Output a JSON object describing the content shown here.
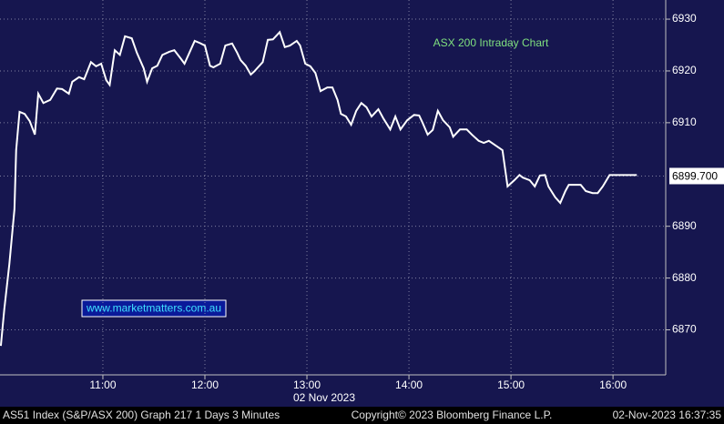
{
  "chart_data": {
    "type": "line",
    "title": "ASX 200 Intraday Chart",
    "watermark": "www.marketmatters.com.au",
    "x_axis_label": "02 Nov 2023",
    "footer": {
      "left": "AS51 Index (S&P/ASX 200) Graph 217 1 Days 3 Minutes",
      "center": "Copyright© 2023 Bloomberg Finance L.P.",
      "right": "02-Nov-2023 16:37:35"
    },
    "last_price": {
      "value": 6899.7,
      "label": "6899.700"
    },
    "xlim": [
      599.5,
      991
    ],
    "xticks": [
      {
        "value": 660,
        "label": "11:00"
      },
      {
        "value": 720,
        "label": "12:00"
      },
      {
        "value": 780,
        "label": "13:00"
      },
      {
        "value": 840,
        "label": "14:00"
      },
      {
        "value": 900,
        "label": "15:00"
      },
      {
        "value": 960,
        "label": "16:00"
      }
    ],
    "ylim": [
      6861.3,
      6933.7
    ],
    "yticks": [
      6870,
      6880,
      6890,
      6910,
      6920,
      6930
    ],
    "grid": true,
    "x": [
      600,
      602,
      605,
      608,
      609,
      611,
      614,
      617,
      620,
      622,
      625,
      629,
      633,
      636,
      640,
      642,
      646,
      649,
      653,
      656,
      659,
      662,
      664,
      667,
      670,
      673,
      677,
      680,
      684,
      686,
      689,
      692,
      695,
      699,
      702,
      706,
      708,
      714,
      717,
      720,
      723,
      725,
      729,
      732,
      736,
      739,
      741,
      744,
      747,
      749,
      754,
      757,
      760,
      764,
      767,
      770,
      774,
      776,
      779,
      782,
      785,
      788,
      792,
      795,
      798,
      800,
      803,
      806,
      809,
      812,
      815,
      818,
      822,
      825,
      829,
      832,
      835,
      839,
      843,
      846,
      848,
      851,
      854,
      857,
      860,
      864,
      866,
      870,
      874,
      877,
      881,
      884,
      887,
      891,
      895,
      898,
      902,
      905,
      907,
      911,
      914,
      917,
      920,
      922,
      926,
      929,
      932,
      934,
      937,
      941,
      944,
      948,
      951,
      954,
      958,
      961,
      974
    ],
    "series": [
      {
        "name": "AS51 Index",
        "color": "#ffffff",
        "values": [
          6866.9,
          6873.9,
          6882.7,
          6893.3,
          6904.7,
          6912.1,
          6911.7,
          6910.3,
          6907.7,
          6915.6,
          6913.8,
          6914.4,
          6916.6,
          6916.5,
          6915.6,
          6917.9,
          6918.8,
          6918.4,
          6921.7,
          6920.9,
          6921.4,
          6918.2,
          6917.3,
          6924.0,
          6923.1,
          6926.7,
          6926.3,
          6923.5,
          6920.5,
          6917.9,
          6920.5,
          6921.0,
          6923.1,
          6923.7,
          6924.0,
          6922.3,
          6921.4,
          6925.8,
          6925.4,
          6924.9,
          6921.0,
          6920.7,
          6921.4,
          6924.9,
          6925.3,
          6923.5,
          6922.1,
          6921.0,
          6919.3,
          6919.9,
          6921.7,
          6926.0,
          6926.1,
          6927.5,
          6924.6,
          6924.9,
          6925.8,
          6924.9,
          6921.4,
          6920.9,
          6919.6,
          6916.1,
          6916.8,
          6916.8,
          6914.4,
          6911.7,
          6911.2,
          6909.6,
          6912.3,
          6913.8,
          6913.0,
          6911.2,
          6912.6,
          6910.8,
          6908.7,
          6911.2,
          6908.7,
          6910.5,
          6911.5,
          6911.4,
          6910.0,
          6907.7,
          6908.6,
          6912.3,
          6910.5,
          6909.1,
          6907.3,
          6908.7,
          6908.7,
          6907.7,
          6906.5,
          6906.1,
          6906.5,
          6905.6,
          6904.7,
          6897.7,
          6898.9,
          6899.9,
          6899.4,
          6898.9,
          6897.7,
          6899.8,
          6899.9,
          6897.7,
          6895.6,
          6894.5,
          6896.8,
          6898.0,
          6898.0,
          6898.0,
          6896.8,
          6896.4,
          6896.4,
          6897.7,
          6899.9,
          6899.9,
          6899.9
        ]
      }
    ]
  }
}
